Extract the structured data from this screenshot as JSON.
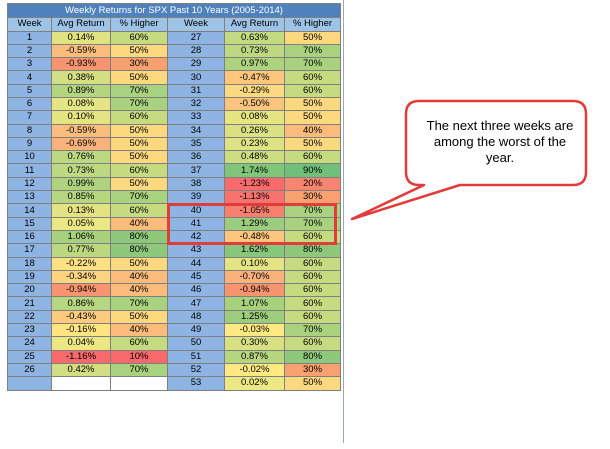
{
  "table": {
    "title": "Weekly Returns for SPX Past 10 Years (2005-2014)",
    "headers": [
      "Week",
      "Avg Return",
      "% Higher",
      "Week",
      "Avg Return",
      "% Higher"
    ],
    "left": [
      {
        "week": "1",
        "ret": "0.14%",
        "pct": "60%",
        "rc": "#e1e383",
        "pc": "#c6db80"
      },
      {
        "week": "2",
        "ret": "-0.59%",
        "pct": "50%",
        "rc": "#fbbd7c",
        "pc": "#fcd87f"
      },
      {
        "week": "3",
        "ret": "-0.93%",
        "pct": "30%",
        "rc": "#f8956f",
        "pc": "#f8a06f"
      },
      {
        "week": "4",
        "ret": "0.38%",
        "pct": "50%",
        "rc": "#d3df82",
        "pc": "#fcd87f"
      },
      {
        "week": "5",
        "ret": "0.89%",
        "pct": "70%",
        "rc": "#b4d57f",
        "pc": "#a9d27e"
      },
      {
        "week": "6",
        "ret": "0.08%",
        "pct": "70%",
        "rc": "#e6e584",
        "pc": "#a9d27e"
      },
      {
        "week": "7",
        "ret": "0.10%",
        "pct": "60%",
        "rc": "#e5e483",
        "pc": "#c6db80"
      },
      {
        "week": "8",
        "ret": "-0.59%",
        "pct": "50%",
        "rc": "#fbbd7c",
        "pc": "#fcd87f"
      },
      {
        "week": "9",
        "ret": "-0.69%",
        "pct": "50%",
        "rc": "#fab27a",
        "pc": "#fcd87f"
      },
      {
        "week": "10",
        "ret": "0.76%",
        "pct": "50%",
        "rc": "#bcd880",
        "pc": "#fcd87f"
      },
      {
        "week": "11",
        "ret": "0.73%",
        "pct": "60%",
        "rc": "#bed881",
        "pc": "#c6db80"
      },
      {
        "week": "12",
        "ret": "0.99%",
        "pct": "50%",
        "rc": "#add37f",
        "pc": "#fcd87f"
      },
      {
        "week": "13",
        "ret": "0.85%",
        "pct": "70%",
        "rc": "#b6d67f",
        "pc": "#a9d27e"
      },
      {
        "week": "14",
        "ret": "0.13%",
        "pct": "60%",
        "rc": "#e3e384",
        "pc": "#c6db80"
      },
      {
        "week": "15",
        "ret": "0.05%",
        "pct": "40%",
        "rc": "#ebe783",
        "pc": "#fbbb7a"
      },
      {
        "week": "16",
        "ret": "1.06%",
        "pct": "80%",
        "rc": "#a8d17e",
        "pc": "#8ec97b"
      },
      {
        "week": "17",
        "ret": "0.77%",
        "pct": "80%",
        "rc": "#bbd880",
        "pc": "#8ec97b"
      },
      {
        "week": "18",
        "ret": "-0.22%",
        "pct": "50%",
        "rc": "#fde182",
        "pc": "#fcd87f"
      },
      {
        "week": "19",
        "ret": "-0.34%",
        "pct": "40%",
        "rc": "#fdd480",
        "pc": "#fbbb7a"
      },
      {
        "week": "20",
        "ret": "-0.94%",
        "pct": "40%",
        "rc": "#f8946f",
        "pc": "#fbbb7a"
      },
      {
        "week": "21",
        "ret": "0.86%",
        "pct": "70%",
        "rc": "#b6d67f",
        "pc": "#a9d27e"
      },
      {
        "week": "22",
        "ret": "-0.43%",
        "pct": "50%",
        "rc": "#fccb7e",
        "pc": "#fcd87f"
      },
      {
        "week": "23",
        "ret": "-0.16%",
        "pct": "40%",
        "rc": "#fee582",
        "pc": "#fbbb7a"
      },
      {
        "week": "24",
        "ret": "0.04%",
        "pct": "60%",
        "rc": "#ece783",
        "pc": "#c6db80"
      },
      {
        "week": "25",
        "ret": "-1.16%",
        "pct": "10%",
        "rc": "#f8696b",
        "pc": "#f8696b"
      },
      {
        "week": "26",
        "ret": "0.42%",
        "pct": "70%",
        "rc": "#d1de82",
        "pc": "#a9d27e"
      }
    ],
    "right": [
      {
        "week": "27",
        "ret": "0.63%",
        "pct": "50%",
        "rc": "#c4da81",
        "pc": "#fcd87f"
      },
      {
        "week": "28",
        "ret": "0.73%",
        "pct": "70%",
        "rc": "#bed881",
        "pc": "#a9d27e"
      },
      {
        "week": "29",
        "ret": "0.97%",
        "pct": "70%",
        "rc": "#aed37f",
        "pc": "#a9d27e"
      },
      {
        "week": "30",
        "ret": "-0.47%",
        "pct": "60%",
        "rc": "#fcc77d",
        "pc": "#c6db80"
      },
      {
        "week": "31",
        "ret": "-0.29%",
        "pct": "60%",
        "rc": "#fdd981",
        "pc": "#c6db80"
      },
      {
        "week": "32",
        "ret": "-0.50%",
        "pct": "50%",
        "rc": "#fcc47d",
        "pc": "#fcd87f"
      },
      {
        "week": "33",
        "ret": "0.08%",
        "pct": "50%",
        "rc": "#e6e584",
        "pc": "#fcd87f"
      },
      {
        "week": "34",
        "ret": "0.26%",
        "pct": "40%",
        "rc": "#dae183",
        "pc": "#fbbb7a"
      },
      {
        "week": "35",
        "ret": "0.23%",
        "pct": "50%",
        "rc": "#dde283",
        "pc": "#fcd87f"
      },
      {
        "week": "36",
        "ret": "0.48%",
        "pct": "60%",
        "rc": "#cddd82",
        "pc": "#c6db80"
      },
      {
        "week": "37",
        "ret": "1.74%",
        "pct": "90%",
        "rc": "#7fc57a",
        "pc": "#70c079"
      },
      {
        "week": "38",
        "ret": "-1.23%",
        "pct": "20%",
        "rc": "#f86a6b",
        "pc": "#f98570"
      },
      {
        "week": "39",
        "ret": "-1.13%",
        "pct": "30%",
        "rc": "#f8736d",
        "pc": "#f8a06f"
      },
      {
        "week": "40",
        "ret": "-1.05%",
        "pct": "70%",
        "rc": "#f8806e",
        "pc": "#a9d27e"
      },
      {
        "week": "41",
        "ret": "1.29%",
        "pct": "70%",
        "rc": "#9acd7d",
        "pc": "#a9d27e"
      },
      {
        "week": "42",
        "ret": "-0.48%",
        "pct": "60%",
        "rc": "#fcc67d",
        "pc": "#c6db80"
      },
      {
        "week": "43",
        "ret": "1.62%",
        "pct": "80%",
        "rc": "#86c77b",
        "pc": "#8ec97b"
      },
      {
        "week": "44",
        "ret": "0.10%",
        "pct": "60%",
        "rc": "#e5e483",
        "pc": "#c6db80"
      },
      {
        "week": "45",
        "ret": "-0.70%",
        "pct": "60%",
        "rc": "#fab17a",
        "pc": "#c6db80"
      },
      {
        "week": "46",
        "ret": "-0.94%",
        "pct": "60%",
        "rc": "#f8946f",
        "pc": "#c6db80"
      },
      {
        "week": "47",
        "ret": "1.07%",
        "pct": "60%",
        "rc": "#a8d17e",
        "pc": "#c6db80"
      },
      {
        "week": "48",
        "ret": "1.25%",
        "pct": "60%",
        "rc": "#9ccd7d",
        "pc": "#c6db80"
      },
      {
        "week": "49",
        "ret": "-0.03%",
        "pct": "70%",
        "rc": "#fee983",
        "pc": "#a9d27e"
      },
      {
        "week": "50",
        "ret": "0.30%",
        "pct": "60%",
        "rc": "#d8e082",
        "pc": "#c6db80"
      },
      {
        "week": "51",
        "ret": "0.87%",
        "pct": "80%",
        "rc": "#b5d67f",
        "pc": "#8ec97b"
      },
      {
        "week": "52",
        "ret": "-0.02%",
        "pct": "30%",
        "rc": "#fee983",
        "pc": "#f8a06f"
      },
      {
        "week": "53",
        "ret": "0.02%",
        "pct": "50%",
        "rc": "#eee884",
        "pc": "#fcd87f"
      }
    ]
  },
  "callout": {
    "text": "The next three weeks are among the worst of the year.",
    "border_color": "#e23b3b"
  }
}
